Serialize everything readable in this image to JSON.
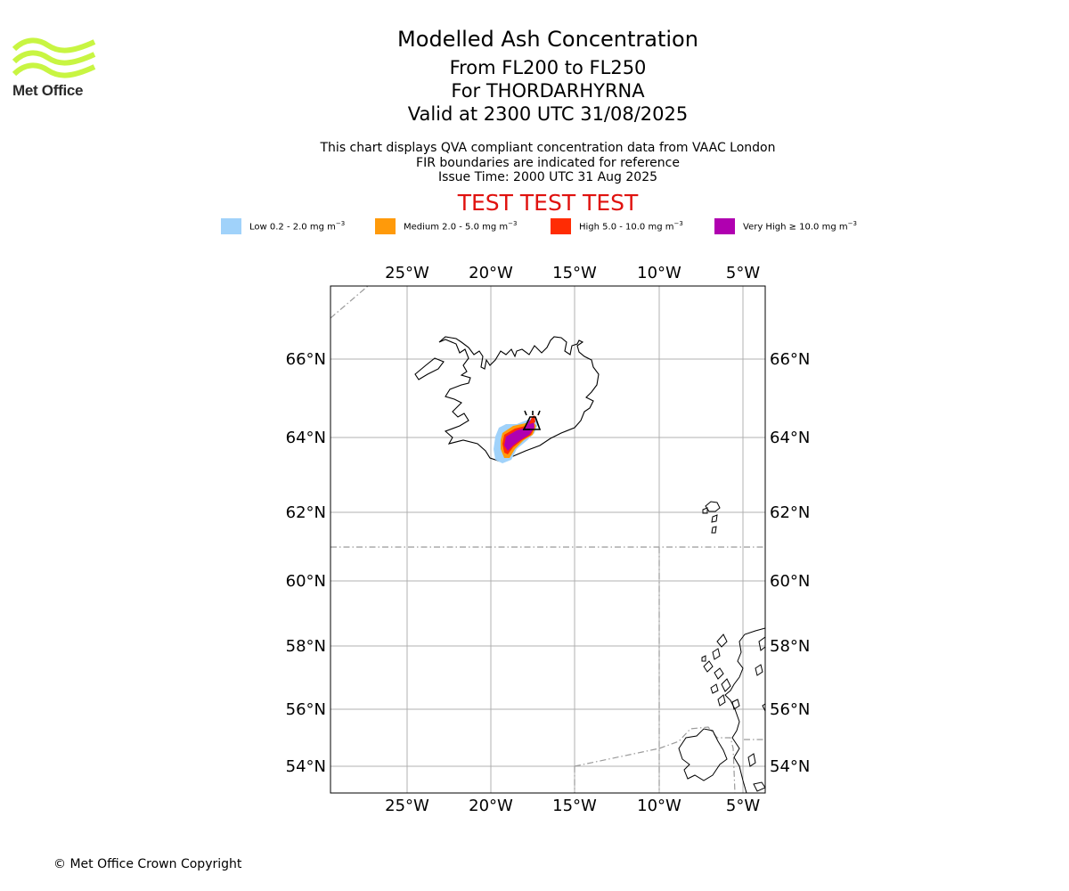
{
  "branding": {
    "logo_text": "Met Office",
    "logo_color": "#c8f542"
  },
  "header": {
    "title": "Modelled Ash Concentration",
    "levels": "From FL200 to FL250",
    "volcano": "For THORDARHYRNA",
    "valid": "Valid at 2300 UTC 31/08/2025",
    "note1": "This chart displays QVA compliant concentration data from VAAC London",
    "note2": "FIR boundaries are indicated for reference",
    "issue": "Issue Time: 2000 UTC 31 Aug 2025",
    "test_banner": "TEST TEST TEST"
  },
  "legend": [
    {
      "label": "Low 0.2 - 2.0 mg m",
      "color": "#a0d2fa"
    },
    {
      "label": "Medium 2.0 - 5.0 mg m",
      "color": "#ff9a0a"
    },
    {
      "label": "High 5.0 - 10.0 mg m",
      "color": "#ff2c04"
    },
    {
      "label": "Very High ≥ 10.0 mg m",
      "color": "#b000b0"
    }
  ],
  "legend_unit_exponent": "−3",
  "map": {
    "lon_ticks": [
      "25°W",
      "20°W",
      "15°W",
      "10°W",
      "5°W"
    ],
    "lat_ticks": [
      "66°N",
      "64°N",
      "62°N",
      "60°N",
      "58°N",
      "56°N",
      "54°N"
    ],
    "volcano_icon": "volcano-icon",
    "fir_boundary_style": "dash-dot grey"
  },
  "footer": {
    "copyright": "© Met Office Crown Copyright"
  }
}
